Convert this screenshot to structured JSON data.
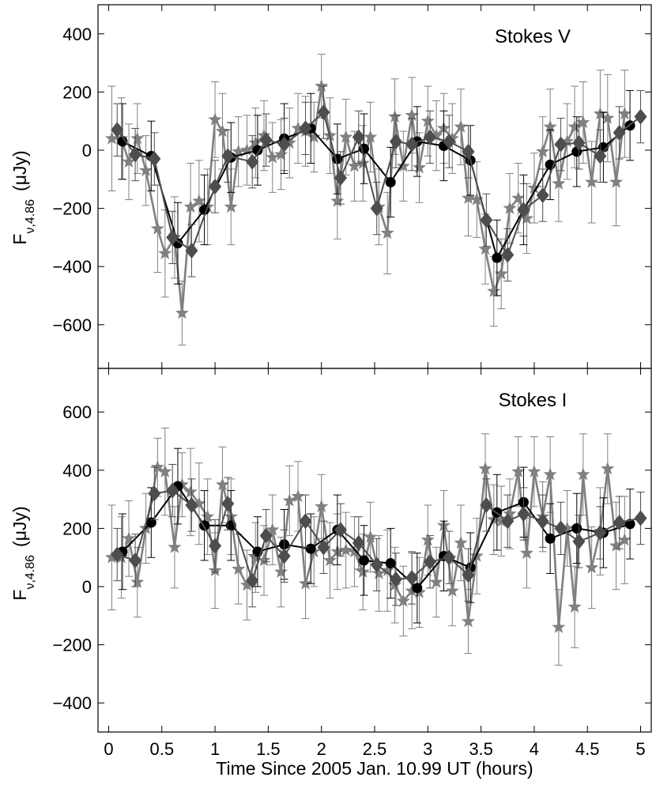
{
  "chart_data": [
    {
      "type": "line",
      "title": "Stokes V",
      "xlabel": "Time Since 2005 Jan. 10.99 UT  (hours)",
      "ylabel_main": "F",
      "ylabel_sub": "ν,4.86",
      "ylabel_unit": "(μJy)",
      "xlim": [
        -0.1,
        5.1
      ],
      "ylim": [
        -750,
        500
      ],
      "xticks": [
        0,
        0.5,
        1,
        1.5,
        2,
        2.5,
        3,
        3.5,
        4,
        4.5,
        5
      ],
      "xtick_labels": [
        "0",
        "0.5",
        "1",
        "1.5",
        "2",
        "2.5",
        "3",
        "3.5",
        "4",
        "4.5",
        "5"
      ],
      "yticks": [
        -600,
        -400,
        -200,
        0,
        200,
        400
      ],
      "ytick_labels": [
        "−600",
        "−400",
        "−200",
        "0",
        "200",
        "400"
      ],
      "series": [
        {
          "marker": "circle",
          "color": "#000000",
          "x": [
            0.13,
            0.4,
            0.65,
            0.9,
            1.15,
            1.4,
            1.65,
            1.9,
            2.15,
            2.4,
            2.65,
            2.9,
            3.15,
            3.4,
            3.65,
            3.9,
            4.15,
            4.4,
            4.65,
            4.9
          ],
          "y": [
            30,
            -20,
            -320,
            -205,
            -25,
            0,
            40,
            75,
            -30,
            5,
            -110,
            30,
            15,
            -35,
            -370,
            -205,
            -50,
            -5,
            10,
            85
          ],
          "err": [
            130,
            120,
            140,
            120,
            120,
            120,
            120,
            120,
            120,
            120,
            120,
            120,
            120,
            120,
            130,
            120,
            120,
            120,
            120,
            120
          ]
        },
        {
          "marker": "diamond",
          "color": "#4d4d4d",
          "x": [
            0.08,
            0.25,
            0.43,
            0.6,
            0.78,
            1.0,
            1.12,
            1.35,
            1.48,
            1.65,
            1.85,
            2.02,
            2.18,
            2.35,
            2.52,
            2.7,
            2.85,
            3.02,
            3.2,
            3.38,
            3.55,
            3.75,
            3.9,
            4.08,
            4.25,
            4.42,
            4.62,
            4.8,
            5.0
          ],
          "y": [
            70,
            -15,
            -30,
            -300,
            -345,
            -125,
            -20,
            -40,
            35,
            20,
            75,
            130,
            -95,
            45,
            -200,
            30,
            20,
            45,
            30,
            -5,
            -240,
            -360,
            -205,
            -155,
            20,
            25,
            -20,
            60,
            115
          ],
          "err": [
            90,
            90,
            90,
            90,
            90,
            90,
            90,
            90,
            90,
            90,
            90,
            90,
            90,
            90,
            90,
            90,
            90,
            90,
            90,
            90,
            90,
            90,
            90,
            90,
            90,
            90,
            90,
            90,
            90
          ]
        },
        {
          "marker": "star",
          "color": "#808080",
          "x": [
            0.03,
            0.12,
            0.19,
            0.27,
            0.35,
            0.46,
            0.53,
            0.62,
            0.69,
            0.77,
            0.85,
            0.93,
            1.0,
            1.07,
            1.15,
            1.22,
            1.3,
            1.38,
            1.46,
            1.54,
            1.62,
            1.7,
            1.78,
            1.85,
            1.93,
            2.0,
            2.08,
            2.15,
            2.23,
            2.31,
            2.39,
            2.46,
            2.54,
            2.62,
            2.69,
            2.77,
            2.85,
            2.92,
            3.0,
            3.08,
            3.15,
            3.23,
            3.31,
            3.38,
            3.46,
            3.54,
            3.62,
            3.69,
            3.77,
            3.85,
            3.93,
            4.0,
            4.08,
            4.15,
            4.23,
            4.31,
            4.38,
            4.46,
            4.54,
            4.62,
            4.69,
            4.77,
            4.85
          ],
          "y": [
            40,
            40,
            -40,
            40,
            -70,
            -270,
            -355,
            -300,
            -560,
            -195,
            -175,
            -195,
            105,
            65,
            -195,
            -5,
            0,
            25,
            50,
            -25,
            -15,
            25,
            75,
            65,
            45,
            220,
            50,
            -175,
            45,
            -55,
            -45,
            45,
            -195,
            -285,
            115,
            -55,
            120,
            -60,
            100,
            50,
            75,
            40,
            80,
            -165,
            -170,
            -340,
            -485,
            -425,
            -200,
            -165,
            -235,
            -130,
            -5,
            80,
            -115,
            30,
            80,
            95,
            -110,
            125,
            110,
            -110,
            125
          ],
          "err": [
            180,
            140,
            130,
            120,
            120,
            150,
            150,
            140,
            110,
            150,
            140,
            130,
            130,
            130,
            130,
            120,
            120,
            120,
            120,
            120,
            120,
            120,
            120,
            120,
            120,
            110,
            130,
            130,
            130,
            120,
            130,
            120,
            130,
            140,
            130,
            120,
            130,
            120,
            120,
            120,
            120,
            120,
            130,
            130,
            130,
            120,
            120,
            120,
            120,
            120,
            120,
            120,
            120,
            130,
            130,
            130,
            140,
            140,
            140,
            150,
            150,
            150,
            150
          ]
        }
      ]
    },
    {
      "type": "line",
      "title": "Stokes I",
      "xlabel": "Time Since 2005 Jan. 10.99 UT  (hours)",
      "ylabel_main": "F",
      "ylabel_sub": "ν,4.86",
      "ylabel_unit": "(μJy)",
      "xlim": [
        -0.1,
        5.1
      ],
      "ylim": [
        -500,
        750
      ],
      "xticks": [
        0,
        0.5,
        1,
        1.5,
        2,
        2.5,
        3,
        3.5,
        4,
        4.5,
        5
      ],
      "xtick_labels": [
        "0",
        "0.5",
        "1",
        "1.5",
        "2",
        "2.5",
        "3",
        "3.5",
        "4",
        "4.5",
        "5"
      ],
      "yticks": [
        -400,
        -200,
        0,
        200,
        400,
        600
      ],
      "ytick_labels": [
        "−400",
        "−200",
        "0",
        "200",
        "400",
        "600"
      ],
      "series": [
        {
          "marker": "circle",
          "color": "#000000",
          "x": [
            0.13,
            0.4,
            0.65,
            0.9,
            1.15,
            1.4,
            1.65,
            1.9,
            2.15,
            2.4,
            2.65,
            2.9,
            3.15,
            3.4,
            3.65,
            3.9,
            4.15,
            4.4,
            4.65,
            4.9
          ],
          "y": [
            120,
            220,
            345,
            210,
            210,
            120,
            145,
            130,
            195,
            90,
            80,
            -5,
            105,
            65,
            255,
            290,
            165,
            200,
            185,
            215
          ],
          "err": [
            130,
            120,
            130,
            120,
            120,
            120,
            120,
            120,
            120,
            120,
            120,
            120,
            120,
            120,
            130,
            120,
            120,
            120,
            120,
            120
          ]
        },
        {
          "marker": "diamond",
          "color": "#4d4d4d",
          "x": [
            0.08,
            0.25,
            0.43,
            0.6,
            0.78,
            1.0,
            1.12,
            1.35,
            1.48,
            1.65,
            1.85,
            2.02,
            2.18,
            2.35,
            2.52,
            2.7,
            2.85,
            3.02,
            3.2,
            3.38,
            3.55,
            3.75,
            3.9,
            4.08,
            4.25,
            4.42,
            4.62,
            4.8,
            5.0
          ],
          "y": [
            110,
            90,
            320,
            330,
            280,
            140,
            285,
            20,
            175,
            105,
            225,
            135,
            195,
            150,
            75,
            25,
            30,
            85,
            100,
            40,
            280,
            225,
            250,
            225,
            200,
            155,
            185,
            220,
            235
          ],
          "err": [
            90,
            90,
            90,
            90,
            90,
            90,
            90,
            90,
            90,
            90,
            90,
            90,
            90,
            90,
            90,
            90,
            90,
            90,
            90,
            90,
            90,
            90,
            90,
            90,
            90,
            90,
            90,
            90,
            90
          ]
        },
        {
          "marker": "star",
          "color": "#808080",
          "x": [
            0.03,
            0.12,
            0.19,
            0.27,
            0.35,
            0.46,
            0.53,
            0.62,
            0.69,
            0.77,
            0.85,
            0.93,
            1.0,
            1.07,
            1.15,
            1.22,
            1.3,
            1.38,
            1.46,
            1.54,
            1.62,
            1.7,
            1.78,
            1.85,
            1.93,
            2.0,
            2.08,
            2.15,
            2.23,
            2.31,
            2.39,
            2.46,
            2.54,
            2.62,
            2.69,
            2.77,
            2.85,
            2.92,
            3.0,
            3.08,
            3.15,
            3.23,
            3.31,
            3.38,
            3.46,
            3.54,
            3.62,
            3.69,
            3.77,
            3.85,
            3.93,
            4.0,
            4.08,
            4.15,
            4.23,
            4.31,
            4.38,
            4.46,
            4.54,
            4.62,
            4.69,
            4.77,
            4.85
          ],
          "y": [
            100,
            100,
            165,
            15,
            200,
            410,
            395,
            135,
            350,
            325,
            285,
            240,
            55,
            350,
            240,
            60,
            5,
            100,
            90,
            195,
            50,
            295,
            310,
            10,
            120,
            275,
            90,
            120,
            125,
            120,
            50,
            170,
            45,
            55,
            5,
            -50,
            -15,
            -20,
            160,
            15,
            210,
            -15,
            150,
            -120,
            105,
            405,
            230,
            225,
            250,
            395,
            115,
            395,
            240,
            385,
            -140,
            200,
            -70,
            385,
            65,
            190,
            405,
            140,
            160
          ],
          "err": [
            180,
            140,
            130,
            120,
            120,
            100,
            150,
            140,
            110,
            150,
            140,
            130,
            130,
            130,
            130,
            120,
            120,
            120,
            120,
            120,
            120,
            120,
            120,
            120,
            120,
            110,
            130,
            130,
            130,
            120,
            130,
            120,
            130,
            140,
            130,
            120,
            130,
            120,
            120,
            120,
            120,
            120,
            130,
            110,
            130,
            120,
            120,
            120,
            120,
            120,
            120,
            120,
            120,
            130,
            130,
            130,
            140,
            140,
            140,
            150,
            120,
            150,
            150
          ]
        }
      ]
    }
  ]
}
